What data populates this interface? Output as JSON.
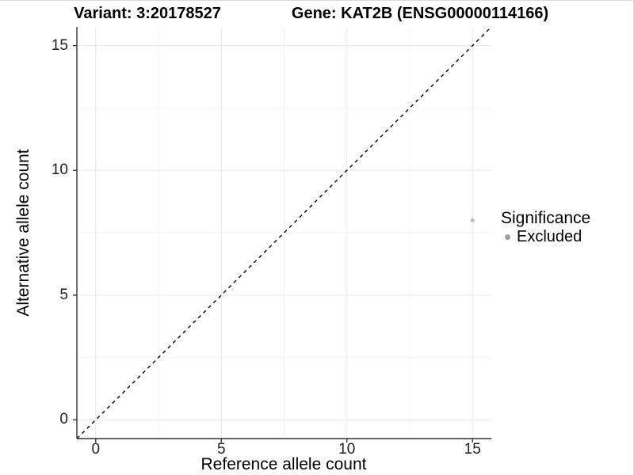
{
  "colors": {
    "background": "#ffffff",
    "axis": "#333333",
    "tick_text": "#1f1f1f",
    "grid_major": "#e7e7e7",
    "grid_minor": "#f3f3f3",
    "point": "#bdbdbd",
    "legend_marker": "#9e9e9e",
    "identity_line": "#000000"
  },
  "chart_data": {
    "type": "scatter",
    "title_left": "Variant: 3:20178527",
    "title_right": "Gene: KAT2B (ENSG00000114166)",
    "xlabel": "Reference allele count",
    "ylabel": "Alternative allele count",
    "xlim": [
      -0.75,
      15.75
    ],
    "ylim": [
      -0.75,
      15.75
    ],
    "x_ticks": [
      0,
      5,
      10,
      15
    ],
    "y_ticks": [
      0,
      5,
      10,
      15
    ],
    "x_minor_gridlines": [
      2.5,
      7.5,
      12.5
    ],
    "y_minor_gridlines": [
      2.5,
      7.5,
      12.5
    ],
    "grid": true,
    "identity_line": {
      "equation": "y = x",
      "style": "dashed",
      "color": "#000000"
    },
    "series": [
      {
        "name": "Excluded",
        "color": "#bdbdbd",
        "points": [
          {
            "x": 15,
            "y": 8
          }
        ]
      }
    ],
    "legend": {
      "position": "right",
      "title": "Significance",
      "items": [
        {
          "label": "Excluded",
          "marker": "circle",
          "color": "#9e9e9e"
        }
      ]
    }
  }
}
